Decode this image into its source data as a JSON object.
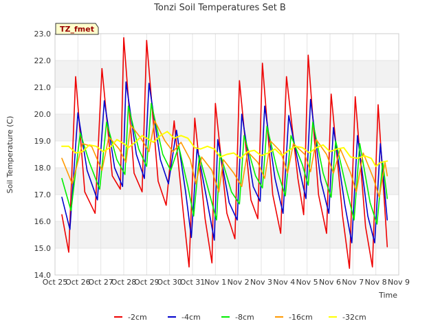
{
  "chart_data": {
    "type": "line",
    "title": "Tonzi Soil Temperatures Set B",
    "xlabel": "Time",
    "ylabel": "Soil Temperature (C)",
    "badge": "TZ_fmet",
    "xlim": [
      0,
      15
    ],
    "ylim": [
      14.0,
      23.0
    ],
    "x_ticks": [
      "Oct 25",
      "Oct 26",
      "Oct 27",
      "Oct 28",
      "Oct 29",
      "Oct 30",
      "Oct 31",
      "Nov 1",
      "Nov 2",
      "Nov 3",
      "Nov 4",
      "Nov 5",
      "Nov 6",
      "Nov 7",
      "Nov 8",
      "Nov 9"
    ],
    "y_ticks": [
      "14.0",
      "15.0",
      "16.0",
      "17.0",
      "18.0",
      "19.0",
      "20.0",
      "21.0",
      "22.0",
      "23.0"
    ],
    "grid": true,
    "legend_position": "bottom",
    "series": [
      {
        "name": "-2cm",
        "color": "#ee0000",
        "width": 1.6,
        "points": [
          [
            0.3,
            16.25
          ],
          [
            0.6,
            14.85
          ],
          [
            0.9,
            21.4
          ],
          [
            1.3,
            17.1
          ],
          [
            1.75,
            16.3
          ],
          [
            2.05,
            21.7
          ],
          [
            2.5,
            17.7
          ],
          [
            2.85,
            17.2
          ],
          [
            3.0,
            22.85
          ],
          [
            3.45,
            17.8
          ],
          [
            3.8,
            17.1
          ],
          [
            4.0,
            22.75
          ],
          [
            4.5,
            17.5
          ],
          [
            4.85,
            16.6
          ],
          [
            5.2,
            19.75
          ],
          [
            5.6,
            16.3
          ],
          [
            5.85,
            14.3
          ],
          [
            6.1,
            19.85
          ],
          [
            6.55,
            16.1
          ],
          [
            6.85,
            14.45
          ],
          [
            7.0,
            20.4
          ],
          [
            7.5,
            16.3
          ],
          [
            7.85,
            15.35
          ],
          [
            8.05,
            21.25
          ],
          [
            8.55,
            16.8
          ],
          [
            8.85,
            16.1
          ],
          [
            9.05,
            21.9
          ],
          [
            9.5,
            17.0
          ],
          [
            9.85,
            15.55
          ],
          [
            10.1,
            21.4
          ],
          [
            10.6,
            17.6
          ],
          [
            10.85,
            16.25
          ],
          [
            11.05,
            22.2
          ],
          [
            11.5,
            17.0
          ],
          [
            11.85,
            15.55
          ],
          [
            12.05,
            20.75
          ],
          [
            12.55,
            16.2
          ],
          [
            12.85,
            14.25
          ],
          [
            13.1,
            20.65
          ],
          [
            13.55,
            15.8
          ],
          [
            13.85,
            14.3
          ],
          [
            14.1,
            20.35
          ],
          [
            14.5,
            15.05
          ]
        ]
      },
      {
        "name": "-4cm",
        "color": "#0000cc",
        "width": 1.6,
        "points": [
          [
            0.3,
            16.9
          ],
          [
            0.65,
            15.7
          ],
          [
            1.0,
            20.05
          ],
          [
            1.4,
            17.9
          ],
          [
            1.85,
            16.8
          ],
          [
            2.15,
            20.5
          ],
          [
            2.6,
            18.0
          ],
          [
            2.95,
            17.3
          ],
          [
            3.1,
            21.2
          ],
          [
            3.55,
            18.5
          ],
          [
            3.9,
            17.6
          ],
          [
            4.1,
            21.15
          ],
          [
            4.6,
            18.3
          ],
          [
            4.95,
            17.4
          ],
          [
            5.3,
            19.4
          ],
          [
            5.7,
            17.1
          ],
          [
            5.95,
            15.4
          ],
          [
            6.2,
            18.75
          ],
          [
            6.65,
            16.7
          ],
          [
            6.95,
            15.3
          ],
          [
            7.1,
            19.05
          ],
          [
            7.6,
            16.7
          ],
          [
            7.95,
            16.05
          ],
          [
            8.15,
            20.0
          ],
          [
            8.65,
            17.3
          ],
          [
            8.95,
            16.75
          ],
          [
            9.15,
            20.3
          ],
          [
            9.6,
            17.6
          ],
          [
            9.95,
            16.3
          ],
          [
            10.2,
            19.95
          ],
          [
            10.7,
            17.8
          ],
          [
            10.95,
            16.85
          ],
          [
            11.15,
            20.55
          ],
          [
            11.6,
            17.5
          ],
          [
            11.95,
            16.3
          ],
          [
            12.15,
            19.5
          ],
          [
            12.65,
            16.6
          ],
          [
            12.95,
            15.2
          ],
          [
            13.2,
            19.2
          ],
          [
            13.65,
            16.2
          ],
          [
            13.95,
            15.2
          ],
          [
            14.2,
            18.9
          ],
          [
            14.5,
            16.05
          ]
        ]
      },
      {
        "name": "-8cm",
        "color": "#00ee00",
        "width": 1.6,
        "points": [
          [
            0.3,
            17.6
          ],
          [
            0.7,
            16.4
          ],
          [
            1.1,
            19.3
          ],
          [
            1.5,
            18.2
          ],
          [
            1.95,
            17.2
          ],
          [
            2.25,
            19.7
          ],
          [
            2.7,
            18.3
          ],
          [
            3.05,
            17.75
          ],
          [
            3.2,
            20.3
          ],
          [
            3.65,
            18.7
          ],
          [
            4.0,
            18.05
          ],
          [
            4.2,
            20.4
          ],
          [
            4.7,
            18.5
          ],
          [
            5.05,
            17.9
          ],
          [
            5.4,
            18.8
          ],
          [
            5.8,
            17.3
          ],
          [
            6.05,
            16.2
          ],
          [
            6.3,
            18.45
          ],
          [
            6.75,
            17.0
          ],
          [
            7.05,
            16.05
          ],
          [
            7.2,
            18.55
          ],
          [
            7.7,
            17.1
          ],
          [
            8.05,
            16.65
          ],
          [
            8.25,
            19.2
          ],
          [
            8.75,
            17.7
          ],
          [
            9.05,
            17.25
          ],
          [
            9.25,
            19.55
          ],
          [
            9.7,
            17.9
          ],
          [
            10.05,
            16.95
          ],
          [
            10.3,
            19.2
          ],
          [
            10.8,
            18.1
          ],
          [
            11.05,
            17.35
          ],
          [
            11.25,
            19.7
          ],
          [
            11.7,
            17.8
          ],
          [
            12.05,
            16.9
          ],
          [
            12.25,
            19.0
          ],
          [
            12.75,
            17.1
          ],
          [
            13.05,
            16.05
          ],
          [
            13.3,
            18.9
          ],
          [
            13.75,
            16.7
          ],
          [
            14.05,
            15.9
          ],
          [
            14.3,
            18.2
          ],
          [
            14.5,
            16.85
          ]
        ]
      },
      {
        "name": "-16cm",
        "color": "#ff9900",
        "width": 1.6,
        "points": [
          [
            0.3,
            18.35
          ],
          [
            0.75,
            17.4
          ],
          [
            1.2,
            18.9
          ],
          [
            1.6,
            18.8
          ],
          [
            2.05,
            17.9
          ],
          [
            2.35,
            19.15
          ],
          [
            2.8,
            18.7
          ],
          [
            3.1,
            18.2
          ],
          [
            3.3,
            19.6
          ],
          [
            3.75,
            19.1
          ],
          [
            4.1,
            18.6
          ],
          [
            4.35,
            19.75
          ],
          [
            4.8,
            19.0
          ],
          [
            5.15,
            18.6
          ],
          [
            5.5,
            18.95
          ],
          [
            5.9,
            18.3
          ],
          [
            6.15,
            17.4
          ],
          [
            6.4,
            18.4
          ],
          [
            6.85,
            17.9
          ],
          [
            7.15,
            17.1
          ],
          [
            7.35,
            18.3
          ],
          [
            7.8,
            17.8
          ],
          [
            8.15,
            17.3
          ],
          [
            8.4,
            18.6
          ],
          [
            8.85,
            18.2
          ],
          [
            9.15,
            17.6
          ],
          [
            9.4,
            19.0
          ],
          [
            9.85,
            18.6
          ],
          [
            10.15,
            17.8
          ],
          [
            10.4,
            18.9
          ],
          [
            10.9,
            18.5
          ],
          [
            11.15,
            17.85
          ],
          [
            11.4,
            19.05
          ],
          [
            11.85,
            18.5
          ],
          [
            12.15,
            17.8
          ],
          [
            12.45,
            18.7
          ],
          [
            12.9,
            17.8
          ],
          [
            13.15,
            17.1
          ],
          [
            13.45,
            18.55
          ],
          [
            13.9,
            17.6
          ],
          [
            14.15,
            16.9
          ],
          [
            14.4,
            18.2
          ],
          [
            14.5,
            17.7
          ]
        ]
      },
      {
        "name": "-32cm",
        "color": "#ffff00",
        "width": 2.0,
        "points": [
          [
            0.3,
            18.8
          ],
          [
            0.6,
            18.8
          ],
          [
            0.9,
            18.55
          ],
          [
            1.2,
            18.6
          ],
          [
            1.5,
            18.85
          ],
          [
            1.8,
            18.8
          ],
          [
            2.1,
            18.6
          ],
          [
            2.4,
            18.75
          ],
          [
            2.7,
            19.05
          ],
          [
            3.0,
            18.9
          ],
          [
            3.2,
            18.75
          ],
          [
            3.5,
            18.95
          ],
          [
            3.8,
            19.2
          ],
          [
            4.1,
            19.05
          ],
          [
            4.3,
            18.95
          ],
          [
            4.6,
            19.2
          ],
          [
            4.9,
            19.35
          ],
          [
            5.2,
            19.1
          ],
          [
            5.5,
            19.2
          ],
          [
            5.8,
            19.1
          ],
          [
            6.1,
            18.75
          ],
          [
            6.35,
            18.7
          ],
          [
            6.65,
            18.8
          ],
          [
            6.95,
            18.7
          ],
          [
            7.2,
            18.4
          ],
          [
            7.5,
            18.5
          ],
          [
            7.8,
            18.55
          ],
          [
            8.1,
            18.35
          ],
          [
            8.4,
            18.6
          ],
          [
            8.7,
            18.65
          ],
          [
            9.0,
            18.45
          ],
          [
            9.3,
            18.55
          ],
          [
            9.6,
            18.7
          ],
          [
            9.9,
            18.45
          ],
          [
            10.2,
            18.65
          ],
          [
            10.5,
            18.8
          ],
          [
            10.8,
            18.75
          ],
          [
            11.1,
            18.55
          ],
          [
            11.4,
            18.75
          ],
          [
            11.7,
            18.85
          ],
          [
            12.0,
            18.6
          ],
          [
            12.3,
            18.7
          ],
          [
            12.6,
            18.75
          ],
          [
            12.9,
            18.4
          ],
          [
            13.2,
            18.35
          ],
          [
            13.5,
            18.45
          ],
          [
            13.8,
            18.35
          ],
          [
            14.0,
            18.05
          ],
          [
            14.2,
            18.2
          ],
          [
            14.5,
            18.25
          ]
        ]
      }
    ]
  }
}
